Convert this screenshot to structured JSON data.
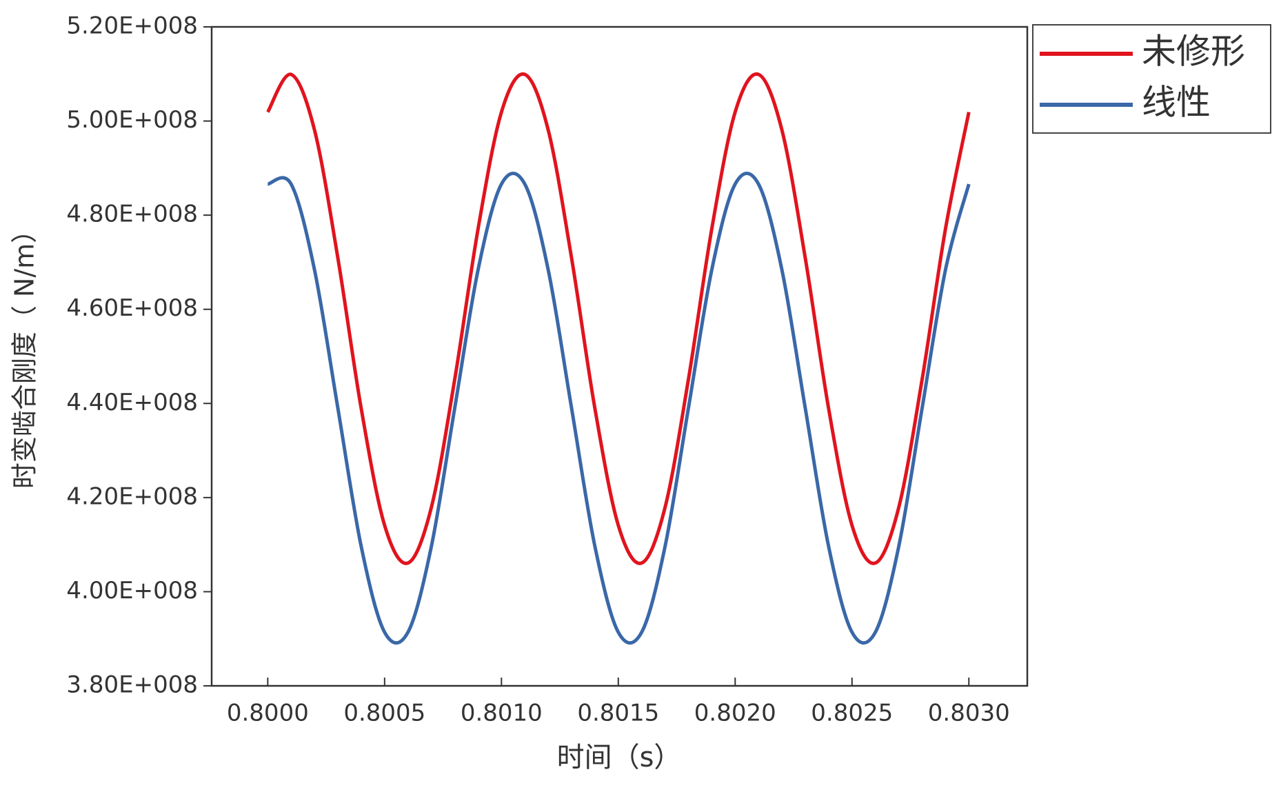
{
  "chart_data": {
    "type": "line",
    "x_label": "时间（s）",
    "y_label": "时变啮合刚度（ N/m）",
    "x": [
      0.8,
      0.8001,
      0.8002,
      0.8003,
      0.8004,
      0.8005,
      0.8006,
      0.8007,
      0.8008,
      0.8009,
      0.801,
      0.8011,
      0.8012,
      0.8013,
      0.8014,
      0.8015,
      0.8016,
      0.8017,
      0.8018,
      0.8019,
      0.802,
      0.8021,
      0.8022,
      0.8023,
      0.8024,
      0.8025,
      0.8026,
      0.8027,
      0.8028,
      0.8029,
      0.803
    ],
    "series": [
      {
        "name": "未修形",
        "color": "#e0141e",
        "values": [
          501900000,
          509900000,
          498100000,
          470900000,
          438900000,
          414100000,
          406100000,
          417900000,
          445100000,
          477100000,
          501900000,
          509900000,
          498100000,
          470900000,
          438900000,
          414100000,
          406100000,
          417900000,
          445100000,
          477100000,
          501900000,
          509900000,
          498100000,
          470900000,
          438900000,
          414100000,
          406100000,
          417900000,
          445100000,
          477100000,
          501900000
        ]
      },
      {
        "name": "线性",
        "color": "#3a68a8",
        "values": [
          486600000,
          486600000,
          468400000,
          439000000,
          409600000,
          391400000,
          391400000,
          409600000,
          439000000,
          468400000,
          486600000,
          486600000,
          468400000,
          439000000,
          409600000,
          391400000,
          391400000,
          409600000,
          439000000,
          468400000,
          486600000,
          486600000,
          468400000,
          439000000,
          409600000,
          391400000,
          391400000,
          409600000,
          439000000,
          468400000,
          486600000
        ]
      }
    ],
    "xlim": [
      0.79976,
      0.80325
    ],
    "ylim": [
      380000000,
      520000000
    ],
    "xticks": [
      {
        "value": 0.8,
        "label": "0.8000"
      },
      {
        "value": 0.8005,
        "label": "0.8005"
      },
      {
        "value": 0.801,
        "label": "0.8010"
      },
      {
        "value": 0.8015,
        "label": "0.8015"
      },
      {
        "value": 0.802,
        "label": "0.8020"
      },
      {
        "value": 0.8025,
        "label": "0.8025"
      },
      {
        "value": 0.803,
        "label": "0.8030"
      }
    ],
    "yticks": [
      {
        "value": 380000000,
        "label": "3.80E+008"
      },
      {
        "value": 400000000,
        "label": "4.00E+008"
      },
      {
        "value": 420000000,
        "label": "4.20E+008"
      },
      {
        "value": 440000000,
        "label": "4.40E+008"
      },
      {
        "value": 460000000,
        "label": "4.60E+008"
      },
      {
        "value": 480000000,
        "label": "4.80E+008"
      },
      {
        "value": 500000000,
        "label": "5.00E+008"
      },
      {
        "value": 520000000,
        "label": "5.20E+008"
      }
    ],
    "legend": "outside-top-right"
  }
}
